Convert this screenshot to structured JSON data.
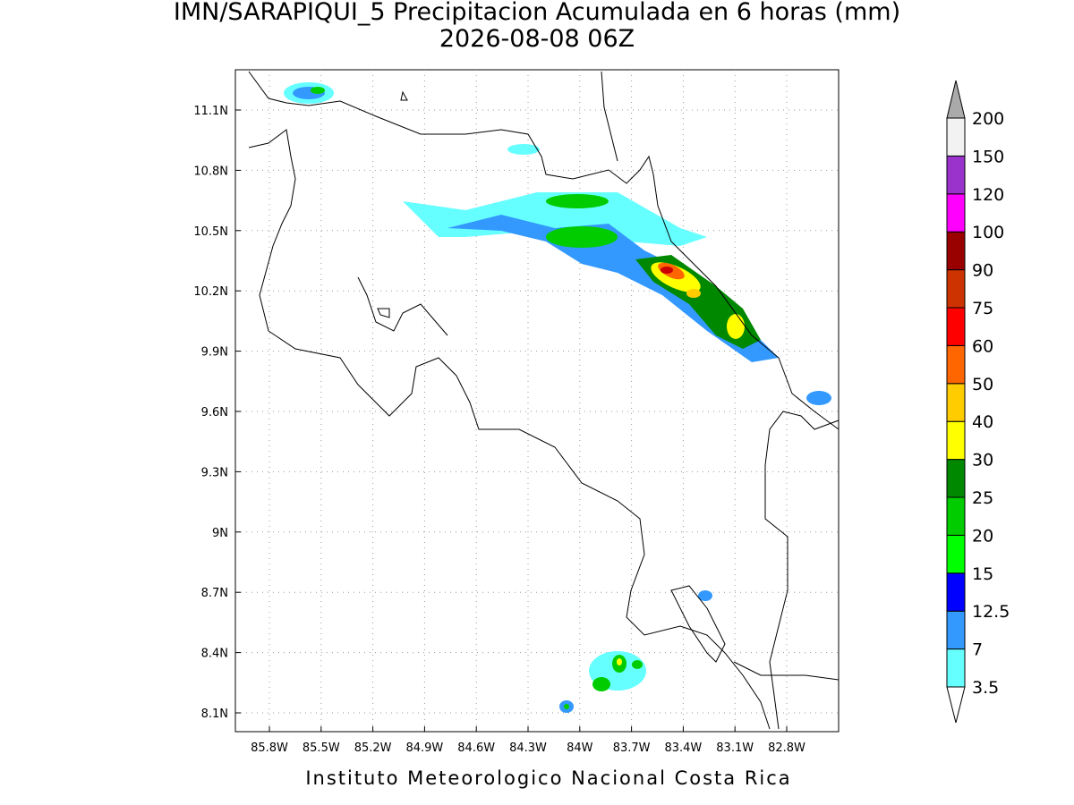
{
  "title": "IMN/SARAPIQUI_5 Precipitacion Acumulada en 6 horas (mm)",
  "subtitle": "2026-08-08 06Z",
  "x_ticks": [
    "85.8W",
    "85.5W",
    "85.2W",
    "84.9W",
    "84.6W",
    "84.3W",
    "84W",
    "83.7W",
    "83.4W",
    "83.1W",
    "82.8W"
  ],
  "y_ticks": [
    "11.1N",
    "10.8N",
    "10.5N",
    "10.2N",
    "9.9N",
    "9.6N",
    "9.3N",
    "9N",
    "8.7N",
    "8.4N",
    "8.1N"
  ],
  "colorbar": {
    "labels": [
      "3.5",
      "7",
      "12.5",
      "15",
      "20",
      "25",
      "30",
      "40",
      "50",
      "60",
      "75",
      "90",
      "100",
      "120",
      "150",
      "200"
    ],
    "colors": [
      "#ffffff",
      "#66ffff",
      "#3399ff",
      "#0000ff",
      "#00ff00",
      "#00cc00",
      "#008800",
      "#ffff00",
      "#ffcc00",
      "#ff6600",
      "#ff0000",
      "#cc3300",
      "#990000",
      "#ff00ff",
      "#9933cc",
      "#f2f2f2",
      "#aaaaaa"
    ]
  },
  "footer": "Instituto Meteorologico Nacional Costa Rica"
}
